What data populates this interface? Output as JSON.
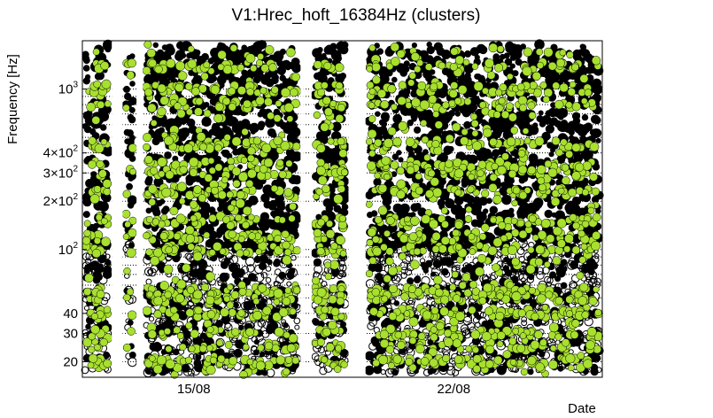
{
  "chart_data": {
    "type": "scatter",
    "title": "V1:Hrec_hoft_16384Hz (clusters)",
    "xlabel": "Date",
    "ylabel": "Frequency [Hz]",
    "yscale": "log",
    "ylim": [
      16,
      2000
    ],
    "grid": true,
    "x_ticks": [
      "15/08",
      "22/08"
    ],
    "y_ticks": [
      {
        "value": 20,
        "label": "20"
      },
      {
        "value": 30,
        "label": "30"
      },
      {
        "value": 40,
        "label": "40"
      },
      {
        "value": 100,
        "label": "10",
        "exp": "2"
      },
      {
        "value": 200,
        "label": "2×10",
        "exp": "2"
      },
      {
        "value": 300,
        "label": "3×10",
        "exp": "2"
      },
      {
        "value": 400,
        "label": "4×10",
        "exp": "2"
      },
      {
        "value": 1000,
        "label": "10",
        "exp": "3"
      }
    ],
    "x_range_days": [
      "12/08",
      "26/08"
    ],
    "data_gaps_days": [
      {
        "start": "12/08 19:00",
        "end": "13/08 02:00"
      },
      {
        "start": "13/08 11:00",
        "end": "13/08 15:00"
      },
      {
        "start": "17/08 21:00",
        "end": "17/08 23:00"
      },
      {
        "start": "18/08 03:00",
        "end": "18/08 04:00"
      },
      {
        "start": "19/08 04:00",
        "end": "19/08 15:00"
      }
    ],
    "series": [
      {
        "marker": "open-circle",
        "color": "#000000"
      },
      {
        "marker": "filled-circle",
        "color": "#a8e02e"
      }
    ],
    "frequency_bands_hz": [
      20,
      25,
      30,
      40,
      50,
      55,
      100,
      120,
      150,
      230,
      300,
      340,
      450,
      800,
      1000,
      1400
    ]
  }
}
